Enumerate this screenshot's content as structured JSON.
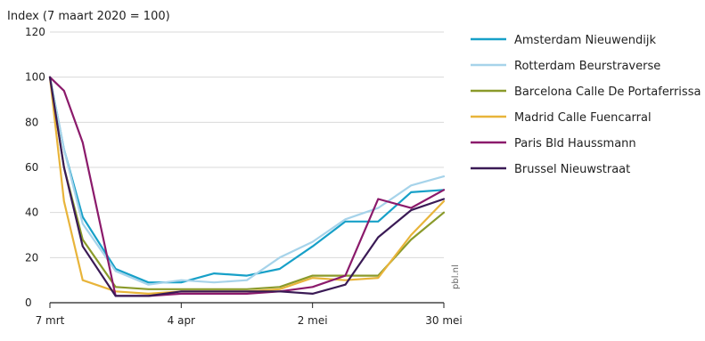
{
  "chart_data": {
    "type": "line",
    "ylabel": "Index (7 maart 2020 = 100)",
    "source": "pbl.nl",
    "ylim": [
      0,
      120
    ],
    "yticks": [
      0,
      20,
      40,
      60,
      80,
      100,
      120
    ],
    "xlim": [
      0,
      84
    ],
    "xticks": [
      {
        "x": 0,
        "label": "7 mrt"
      },
      {
        "x": 28,
        "label": "4 apr"
      },
      {
        "x": 56,
        "label": "2 mei"
      },
      {
        "x": 84,
        "label": "30 mei"
      }
    ],
    "x": [
      0,
      3,
      7,
      14,
      21,
      28,
      35,
      42,
      49,
      56,
      63,
      70,
      77,
      84
    ],
    "series": [
      {
        "name": "Amsterdam Nieuwendijk",
        "color": "#17a0c8",
        "values": [
          100,
          68,
          38,
          15,
          9,
          9,
          13,
          12,
          15,
          25,
          36,
          36,
          49,
          50
        ]
      },
      {
        "name": "Rotterdam Beurstraverse",
        "color": "#a6d3ea",
        "values": [
          100,
          68,
          35,
          14,
          8,
          10,
          9,
          10,
          20,
          27,
          37,
          42,
          52,
          56
        ]
      },
      {
        "name": "Barcelona Calle De Portaferrissa",
        "color": "#8a9a2a",
        "values": [
          100,
          60,
          28,
          7,
          6,
          6,
          6,
          6,
          7,
          12,
          12,
          12,
          28,
          40
        ]
      },
      {
        "name": "Madrid Calle Fuencarral",
        "color": "#e8b43a",
        "values": [
          100,
          45,
          10,
          5,
          4,
          5,
          5,
          5,
          6,
          11,
          10,
          11,
          30,
          45
        ]
      },
      {
        "name": "Paris Bld Haussmann",
        "color": "#8b1a6b",
        "values": [
          100,
          94,
          71,
          3,
          3,
          4,
          4,
          4,
          5,
          7,
          12,
          46,
          42,
          50
        ]
      },
      {
        "name": "Brussel Nieuwstraat",
        "color": "#3a1a55",
        "values": [
          100,
          60,
          25,
          3,
          3,
          5,
          5,
          5,
          5,
          4,
          8,
          29,
          41,
          46
        ]
      }
    ]
  }
}
